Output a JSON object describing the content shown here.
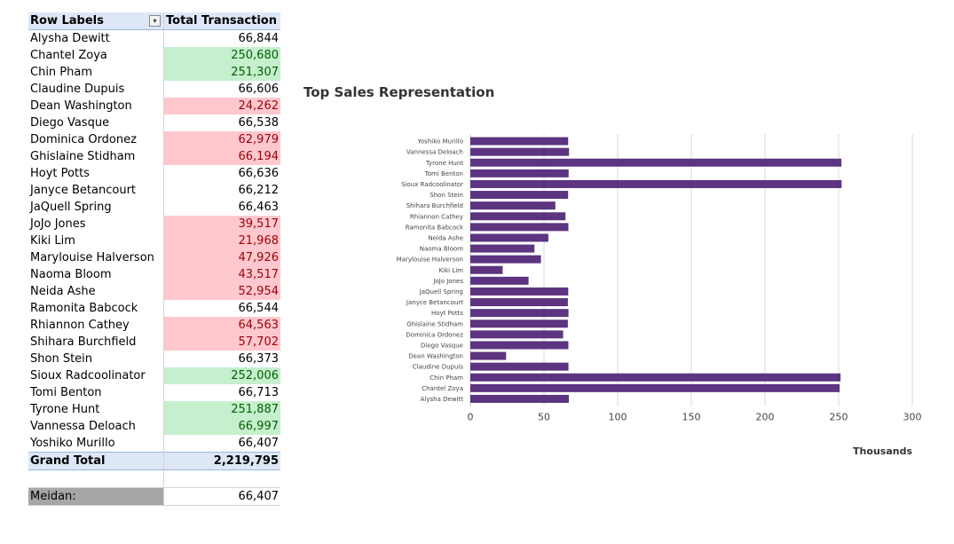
{
  "table": {
    "header": {
      "col1": "Row Labels",
      "col2": "Total Transaction"
    },
    "rows": [
      {
        "name": "Alysha Dewitt",
        "value": "66,844",
        "hl": ""
      },
      {
        "name": "Chantel Zoya",
        "value": "250,680",
        "hl": "green"
      },
      {
        "name": "Chin Pham",
        "value": "251,307",
        "hl": "green"
      },
      {
        "name": "Claudine Dupuis",
        "value": "66,606",
        "hl": ""
      },
      {
        "name": "Dean Washington",
        "value": "24,262",
        "hl": "red"
      },
      {
        "name": "Diego Vasque",
        "value": "66,538",
        "hl": ""
      },
      {
        "name": "Dominica Ordonez",
        "value": "62,979",
        "hl": "red"
      },
      {
        "name": "Ghislaine Stidham",
        "value": "66,194",
        "hl": "red"
      },
      {
        "name": "Hoyt Potts",
        "value": "66,636",
        "hl": ""
      },
      {
        "name": "Janyce Betancourt",
        "value": "66,212",
        "hl": ""
      },
      {
        "name": "JaQuell Spring",
        "value": "66,463",
        "hl": ""
      },
      {
        "name": "JoJo Jones",
        "value": "39,517",
        "hl": "red"
      },
      {
        "name": "Kiki Lim",
        "value": "21,968",
        "hl": "red"
      },
      {
        "name": "Marylouise Halverson",
        "value": "47,926",
        "hl": "red"
      },
      {
        "name": "Naoma Bloom",
        "value": "43,517",
        "hl": "red"
      },
      {
        "name": "Neida Ashe",
        "value": "52,954",
        "hl": "red"
      },
      {
        "name": "Ramonita Babcock",
        "value": "66,544",
        "hl": ""
      },
      {
        "name": "Rhiannon Cathey",
        "value": "64,563",
        "hl": "red"
      },
      {
        "name": "Shihara Burchfield",
        "value": "57,702",
        "hl": "red"
      },
      {
        "name": "Shon Stein",
        "value": "66,373",
        "hl": ""
      },
      {
        "name": "Sioux Radcoolinator",
        "value": "252,006",
        "hl": "green"
      },
      {
        "name": "Tomi Benton",
        "value": "66,713",
        "hl": ""
      },
      {
        "name": "Tyrone Hunt",
        "value": "251,887",
        "hl": "green"
      },
      {
        "name": "Vannessa Deloach",
        "value": "66,997",
        "hl": "green"
      },
      {
        "name": "Yoshiko Murillo",
        "value": "66,407",
        "hl": ""
      }
    ],
    "grand_total": {
      "label": "Grand Total",
      "value": "2,219,795"
    },
    "median": {
      "label": "Meidan:",
      "value": "66,407"
    }
  },
  "colors": {
    "bar": "#5c3480",
    "green_fill": "#c6efce",
    "red_fill": "#ffc7ce",
    "header_fill": "#dde7f6"
  },
  "chart_data": {
    "type": "bar",
    "orientation": "horizontal",
    "title": "Top Sales Representation",
    "xlabel": "Thousands",
    "ylabel": "",
    "xlim": [
      0,
      300
    ],
    "xticks": [
      0,
      50,
      100,
      150,
      200,
      250,
      300
    ],
    "grid": "vertical",
    "categories": [
      "Yoshiko Murillo",
      "Vannessa Deloach",
      "Tyrone Hunt",
      "Tomi Benton",
      "Sioux Radcoolinator",
      "Shon Stein",
      "Shihara Burchfield",
      "Rhiannon Cathey",
      "Ramonita Babcock",
      "Neida Ashe",
      "Naoma Bloom",
      "Marylouise Halverson",
      "Kiki Lim",
      "JoJo Jones",
      "JaQuell Spring",
      "Janyce Betancourt",
      "Hoyt Potts",
      "Ghislaine Stidham",
      "Dominica Ordonez",
      "Diego Vasque",
      "Dean Washington",
      "Claudine Dupuis",
      "Chin Pham",
      "Chantel Zoya",
      "Alysha Dewitt"
    ],
    "values": [
      66.407,
      66.997,
      251.887,
      66.713,
      252.006,
      66.373,
      57.702,
      64.563,
      66.544,
      52.954,
      43.517,
      47.926,
      21.968,
      39.517,
      66.463,
      66.212,
      66.636,
      66.194,
      62.979,
      66.538,
      24.262,
      66.606,
      251.307,
      250.68,
      66.844
    ]
  }
}
